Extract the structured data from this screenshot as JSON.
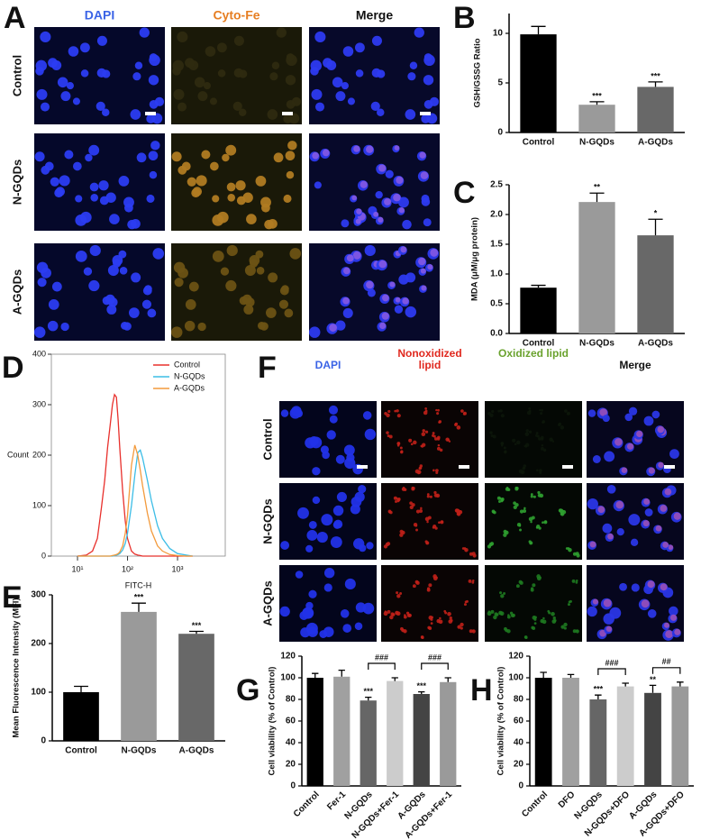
{
  "image_panels": [
    {
      "panel": "A",
      "columns": [
        "DAPI",
        "Cyto-Fe",
        "Merge"
      ],
      "column_colors": [
        "#3a63e6",
        "#e67e22",
        "#111111"
      ],
      "rows": [
        "Control",
        "N-GQDs",
        "A-GQDs"
      ]
    },
    {
      "panel": "F",
      "columns": [
        "DAPI",
        "Nonoxidized lipid",
        "Oxidized lipid",
        "Merge"
      ],
      "column_colors": [
        "#3a63e6",
        "#e0281e",
        "#6aa22e",
        "#111111"
      ],
      "rows": [
        "Control",
        "N-GQDs",
        "A-GQDs"
      ]
    }
  ],
  "chart_data": [
    {
      "type": "bar",
      "panel": "B",
      "ylabel": "GSH/GSSG Ratio",
      "categories": [
        "Control",
        "N-GQDs",
        "A-GQDs"
      ],
      "values": [
        9.9,
        2.8,
        4.6
      ],
      "errors": [
        0.8,
        0.3,
        0.5
      ],
      "colors": [
        "#000000",
        "#9a9a9a",
        "#686868"
      ],
      "significance": [
        null,
        "***",
        "***"
      ],
      "ylim": [
        0,
        12
      ],
      "yticks": [
        0,
        5,
        10
      ]
    },
    {
      "type": "bar",
      "panel": "C",
      "ylabel": "MDA (μM/μg protein)",
      "categories": [
        "Control",
        "N-GQDs",
        "A-GQDs"
      ],
      "values": [
        0.77,
        2.21,
        1.65
      ],
      "errors": [
        0.04,
        0.15,
        0.27
      ],
      "colors": [
        "#000000",
        "#9a9a9a",
        "#686868"
      ],
      "significance": [
        null,
        "**",
        "*"
      ],
      "ylim": [
        0,
        2.5
      ],
      "yticks": [
        {
          "value": 0,
          "label": "0.0"
        },
        0.5,
        {
          "value": 1,
          "label": "1.0"
        },
        1.5,
        {
          "value": 2,
          "label": "2.0"
        },
        2.5
      ]
    },
    {
      "type": "line",
      "panel": "D",
      "xlabel": "FITC-H",
      "ylabel": "Count",
      "xscale": "log",
      "xlim": [
        3,
        9000
      ],
      "xticks": [
        {
          "value": 10,
          "label": "10¹"
        },
        {
          "value": 100,
          "label": "10²"
        },
        {
          "value": 1000,
          "label": "10³"
        }
      ],
      "ylim": [
        0,
        400
      ],
      "yticks": [
        0,
        100,
        200,
        300,
        400
      ],
      "legend": "upper right",
      "x": [
        10,
        15,
        20,
        25,
        30,
        35,
        40,
        45,
        50,
        55,
        60,
        65,
        70,
        80,
        90,
        100,
        120,
        140,
        160,
        180,
        200,
        250,
        300,
        400,
        500,
        700,
        1000,
        1500,
        2000
      ],
      "series": [
        {
          "name": "Control",
          "color": "#e8302c",
          "values": [
            0,
            2,
            10,
            35,
            95,
            150,
            215,
            260,
            300,
            320,
            315,
            270,
            215,
            130,
            70,
            35,
            10,
            4,
            2,
            1,
            0,
            0,
            0,
            0,
            0,
            0,
            0,
            0,
            0
          ]
        },
        {
          "name": "N-GQDs",
          "color": "#3cbde6",
          "values": [
            0,
            0,
            0,
            0,
            0,
            0,
            0,
            0,
            0,
            1,
            2,
            3,
            5,
            12,
            25,
            45,
            100,
            160,
            205,
            210,
            195,
            150,
            110,
            60,
            35,
            15,
            5,
            2,
            0
          ]
        },
        {
          "name": "A-GQDs",
          "color": "#f39a3c",
          "values": [
            0,
            0,
            0,
            0,
            0,
            0,
            0,
            0,
            1,
            2,
            3,
            5,
            8,
            20,
            45,
            80,
            180,
            220,
            200,
            170,
            140,
            85,
            50,
            20,
            10,
            3,
            1,
            0,
            0
          ]
        }
      ]
    },
    {
      "type": "bar",
      "panel": "E",
      "ylabel": "Mean Fluorescence Intensity (MFI)",
      "categories": [
        "Control",
        "N-GQDs",
        "A-GQDs"
      ],
      "values": [
        100,
        265,
        220
      ],
      "errors": [
        12,
        18,
        5
      ],
      "colors": [
        "#000000",
        "#9a9a9a",
        "#686868"
      ],
      "significance": [
        null,
        "***",
        "***"
      ],
      "ylim": [
        0,
        300
      ],
      "yticks": [
        0,
        100,
        200,
        300
      ]
    },
    {
      "type": "bar",
      "panel": "G",
      "ylabel": "Cell viability (% of Control)",
      "categories": [
        "Control",
        "Fer-1",
        "N-GQDs",
        "N-GQDs+Fer-1",
        "A-GQDs",
        "A-GQDs+Fer-1"
      ],
      "values": [
        100,
        101,
        79,
        97,
        85,
        96
      ],
      "errors": [
        4,
        6,
        3,
        3,
        2,
        4
      ],
      "colors": [
        "#000000",
        "#a0a0a0",
        "#666666",
        "#cccccc",
        "#444444",
        "#9a9a9a"
      ],
      "significance": [
        null,
        null,
        "***",
        null,
        "***",
        null
      ],
      "comparisons": [
        {
          "pair": [
            2,
            3
          ],
          "label": "###"
        },
        {
          "pair": [
            4,
            5
          ],
          "label": "###"
        }
      ],
      "ylim": [
        0,
        120
      ],
      "yticks": [
        0,
        20,
        40,
        60,
        80,
        100,
        120
      ]
    },
    {
      "type": "bar",
      "panel": "H",
      "ylabel": "Cell viability (% of Control)",
      "categories": [
        "Control",
        "DFO",
        "N-GQDs",
        "N-GQDs+DFO",
        "A-GQDs",
        "A-GQDs+DFO"
      ],
      "values": [
        100,
        100,
        80,
        92,
        86,
        92
      ],
      "errors": [
        5,
        3,
        4,
        3,
        7,
        4
      ],
      "colors": [
        "#000000",
        "#a0a0a0",
        "#666666",
        "#cccccc",
        "#444444",
        "#9a9a9a"
      ],
      "significance": [
        null,
        null,
        "***",
        null,
        "**",
        null
      ],
      "comparisons": [
        {
          "pair": [
            2,
            3
          ],
          "label": "###"
        },
        {
          "pair": [
            4,
            5
          ],
          "label": "##"
        }
      ],
      "ylim": [
        0,
        120
      ],
      "yticks": [
        0,
        20,
        40,
        60,
        80,
        100,
        120
      ]
    }
  ]
}
